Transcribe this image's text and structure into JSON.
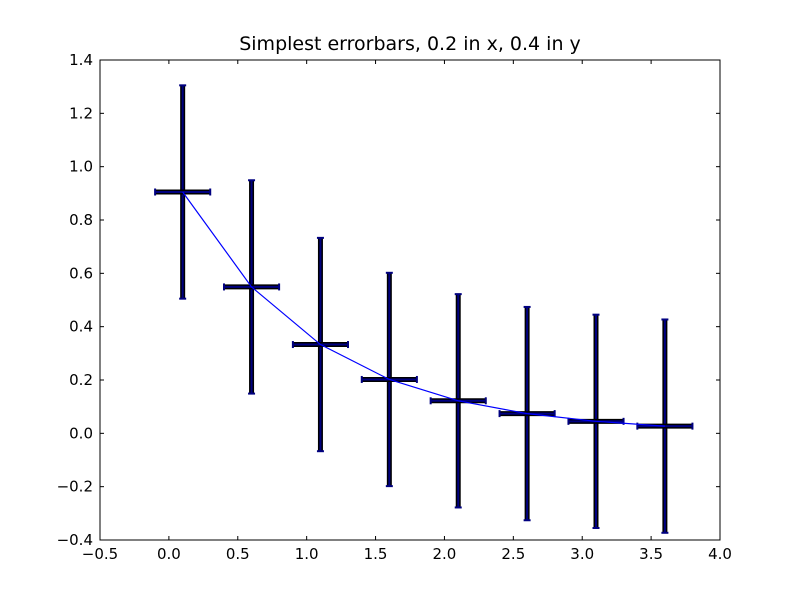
{
  "chart_data": {
    "type": "line",
    "title": "Simplest errorbars, 0.2 in x, 0.4 in y",
    "xlabel": "",
    "ylabel": "",
    "xlim": [
      -0.5,
      4.0
    ],
    "ylim": [
      -0.4,
      1.4
    ],
    "xticks": [
      -0.5,
      0.0,
      0.5,
      1.0,
      1.5,
      2.0,
      2.5,
      3.0,
      3.5,
      4.0
    ],
    "xtick_labels": [
      "−0.5",
      "0.0",
      "0.5",
      "1.0",
      "1.5",
      "2.0",
      "2.5",
      "3.0",
      "3.5",
      "4.0"
    ],
    "yticks": [
      -0.4,
      -0.2,
      0.0,
      0.2,
      0.4,
      0.6,
      0.8,
      1.0,
      1.2,
      1.4
    ],
    "ytick_labels": [
      "−0.4",
      "−0.2",
      "0.0",
      "0.2",
      "0.4",
      "0.6",
      "0.8",
      "1.0",
      "1.2",
      "1.4"
    ],
    "grid": false,
    "x": [
      0.1,
      0.6,
      1.1,
      1.6,
      2.1,
      2.6,
      3.1,
      3.6
    ],
    "y": [
      0.905,
      0.549,
      0.333,
      0.202,
      0.122,
      0.074,
      0.045,
      0.027
    ],
    "xerr": 0.2,
    "yerr": 0.4,
    "colors": {
      "line": "#0000ff",
      "errorbar": "#000080"
    }
  }
}
